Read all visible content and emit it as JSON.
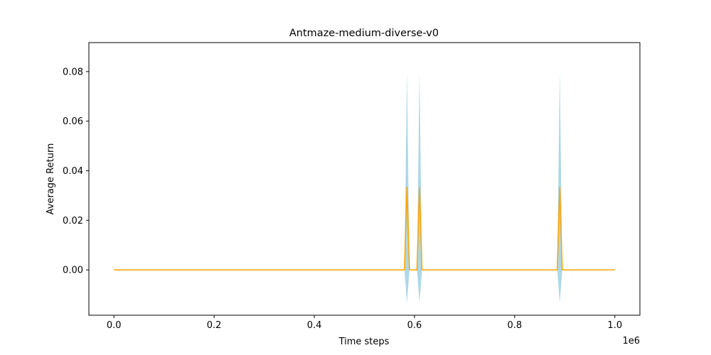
{
  "chart_data": {
    "type": "line",
    "title": "Antmaze-medium-diverse-v0",
    "xlabel": "Time steps",
    "ylabel": "Average Return",
    "x_offset_label": "1e6",
    "xlim": [
      -0.05,
      1.05
    ],
    "ylim": [
      -0.0183,
      0.0917
    ],
    "xticks": [
      0.0,
      0.2,
      0.4,
      0.6,
      0.8,
      1.0
    ],
    "xtick_labels": [
      "0.0",
      "0.2",
      "0.4",
      "0.6",
      "0.8",
      "1.0"
    ],
    "yticks": [
      0.0,
      0.02,
      0.04,
      0.06,
      0.08
    ],
    "ytick_labels": [
      "0.00",
      "0.02",
      "0.04",
      "0.06",
      "0.08"
    ],
    "grid": false,
    "series": [
      {
        "color": "#ffa500",
        "band_color": "#add8e6",
        "x": [
          0.0,
          0.575,
          0.58,
          0.585,
          0.59,
          0.6,
          0.605,
          0.61,
          0.615,
          0.88,
          0.885,
          0.89,
          0.895,
          1.0
        ],
        "mean": [
          0,
          0,
          0,
          0.0333,
          0,
          0,
          0,
          0.0333,
          0,
          0,
          0,
          0.0333,
          0,
          0
        ],
        "lower": [
          0,
          0,
          0,
          -0.0133,
          0,
          0,
          0,
          -0.0133,
          0,
          0,
          0,
          -0.0133,
          0,
          0
        ],
        "upper": [
          0,
          0,
          0,
          0.08,
          0,
          0,
          0,
          0.08,
          0,
          0,
          0,
          0.08,
          0,
          0
        ]
      }
    ]
  }
}
